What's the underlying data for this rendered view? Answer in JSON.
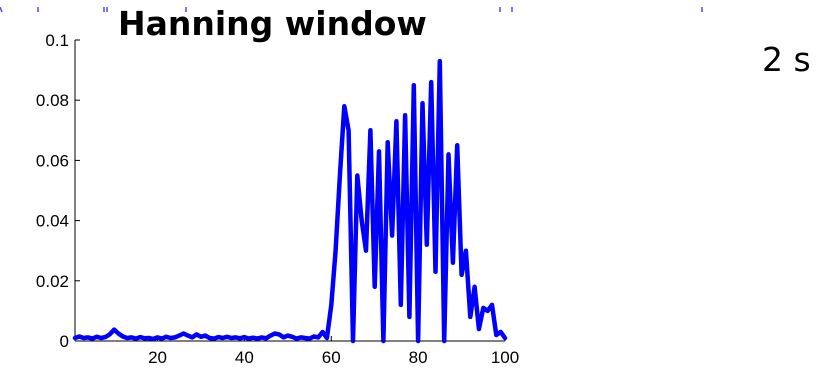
{
  "title": "Hanning window",
  "side_note": "2 s",
  "colors": {
    "series": "#0000ff",
    "axis": "#000000",
    "background": "#ffffff"
  },
  "chart_data": {
    "type": "line",
    "title": "Hanning window",
    "xlabel": "",
    "ylabel": "",
    "xlim": [
      1,
      100
    ],
    "ylim": [
      0,
      0.1
    ],
    "grid": false,
    "x_ticks": [
      20,
      40,
      60,
      80,
      100
    ],
    "y_ticks": [
      0,
      0.02,
      0.04,
      0.06,
      0.08,
      0.1
    ],
    "x_tick_labels": [
      "20",
      "40",
      "60",
      "80",
      "100"
    ],
    "y_tick_labels": [
      "0",
      "0.02",
      "0.04",
      "0.06",
      "0.08",
      "0.1"
    ],
    "series": [
      {
        "color": "#0000ff",
        "x": [
          1,
          2,
          3,
          4,
          5,
          6,
          7,
          8,
          9,
          10,
          11,
          12,
          13,
          14,
          15,
          16,
          17,
          18,
          19,
          20,
          21,
          22,
          23,
          24,
          25,
          26,
          27,
          28,
          29,
          30,
          31,
          32,
          33,
          34,
          35,
          36,
          37,
          38,
          39,
          40,
          41,
          42,
          43,
          44,
          45,
          46,
          47,
          48,
          49,
          50,
          51,
          52,
          53,
          54,
          55,
          56,
          57,
          58,
          59,
          60,
          61,
          62,
          63,
          64,
          65,
          66,
          67,
          68,
          69,
          70,
          71,
          72,
          73,
          74,
          75,
          76,
          77,
          78,
          79,
          80,
          81,
          82,
          83,
          84,
          85,
          86,
          87,
          88,
          89,
          90,
          91,
          92,
          93,
          94,
          95,
          96,
          97,
          98,
          99,
          100
        ],
        "values": [
          0.001,
          0.0015,
          0.001,
          0.0012,
          0.0008,
          0.0014,
          0.001,
          0.0013,
          0.0022,
          0.0038,
          0.0025,
          0.0015,
          0.001,
          0.0012,
          0.0008,
          0.0013,
          0.0009,
          0.001,
          0.0007,
          0.0012,
          0.0008,
          0.0014,
          0.001,
          0.0012,
          0.0018,
          0.0025,
          0.0018,
          0.0012,
          0.0022,
          0.0014,
          0.0018,
          0.001,
          0.0008,
          0.0013,
          0.001,
          0.0014,
          0.001,
          0.0012,
          0.0009,
          0.0013,
          0.0008,
          0.0011,
          0.0008,
          0.0012,
          0.0009,
          0.0018,
          0.0025,
          0.0022,
          0.0012,
          0.0018,
          0.0014,
          0.0008,
          0.0012,
          0.001,
          0.0008,
          0.0015,
          0.0012,
          0.003,
          0.001,
          0.012,
          0.03,
          0.055,
          0.078,
          0.07,
          0.0,
          0.055,
          0.04,
          0.03,
          0.07,
          0.018,
          0.063,
          0.0,
          0.066,
          0.035,
          0.073,
          0.012,
          0.075,
          0.008,
          0.085,
          0.0,
          0.079,
          0.032,
          0.086,
          0.023,
          0.093,
          0.0,
          0.062,
          0.026,
          0.065,
          0.022,
          0.03,
          0.008,
          0.018,
          0.004,
          0.011,
          0.01,
          0.012,
          0.002,
          0.003,
          0.001
        ]
      }
    ]
  }
}
